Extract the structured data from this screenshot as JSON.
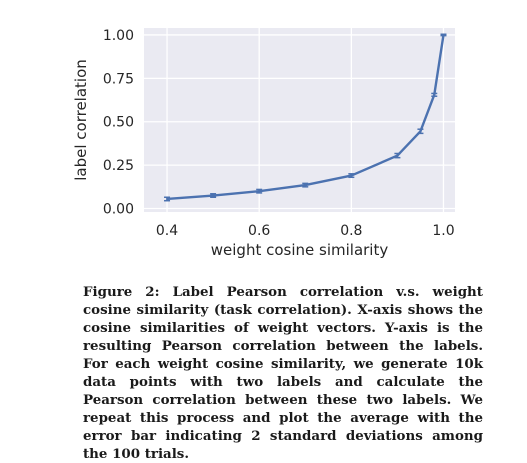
{
  "chart_data": {
    "type": "line",
    "xlabel": "weight cosine similarity",
    "ylabel": "label correlation",
    "xlim": [
      0.35,
      1.025
    ],
    "ylim": [
      -0.02,
      1.04
    ],
    "xticks": [
      0.4,
      0.6,
      0.8,
      1.0
    ],
    "xtick_labels": [
      "0.4",
      "0.6",
      "0.8",
      "1.0"
    ],
    "yticks": [
      0.0,
      0.25,
      0.5,
      0.75,
      1.0
    ],
    "ytick_labels": [
      "0.00",
      "0.25",
      "0.50",
      "0.75",
      "1.00"
    ],
    "grid": true,
    "background": "#eaeaf2",
    "line_color": "#4c72b0",
    "series": [
      {
        "x": [
          0.4,
          0.5,
          0.6,
          0.7,
          0.8,
          0.9,
          0.95,
          0.98,
          1.0
        ],
        "y": [
          0.055,
          0.075,
          0.1,
          0.135,
          0.19,
          0.305,
          0.445,
          0.655,
          1.0
        ],
        "error": [
          0.01,
          0.01,
          0.01,
          0.01,
          0.01,
          0.012,
          0.012,
          0.008,
          0.004
        ]
      }
    ]
  },
  "caption": {
    "label": "Figure 2:",
    "text": "Label Pearson correlation v.s. weight cosine similarity (task correlation). X-axis shows the cosine similarities of weight vectors. Y-axis is the resulting Pearson correlation between the labels. For each weight cosine similarity, we generate 10k data points with two labels and calculate the Pearson correlation between these two labels. We repeat this process and plot the average with the error bar indicating 2 standard deviations among the 100 trials."
  }
}
